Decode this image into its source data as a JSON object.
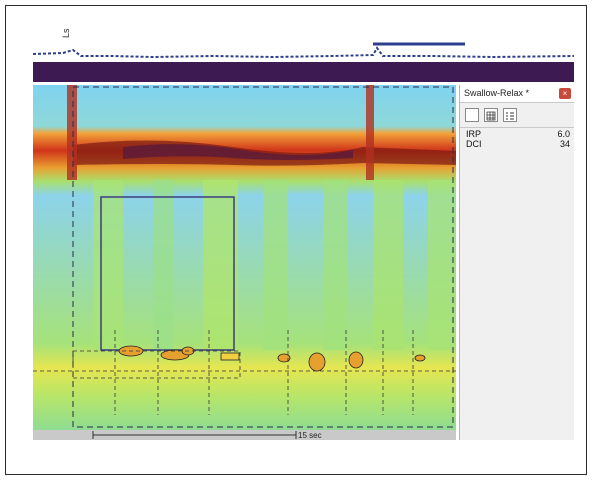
{
  "channel_label": "Ls",
  "time_scale_label": "15 sec",
  "panel": {
    "title": "Swallow-Relax *",
    "close_icon": "close-icon",
    "toolbar": [
      "single-view-icon",
      "grid-view-icon",
      "list-view-icon"
    ],
    "metrics": [
      {
        "name": "IRP",
        "value": "6.0"
      },
      {
        "name": "DCI",
        "value": "34"
      }
    ]
  },
  "colors": {
    "band_purple": "#3e1a52",
    "trace_blue": "#2c3f8c",
    "close_red": "#c84a3a"
  }
}
